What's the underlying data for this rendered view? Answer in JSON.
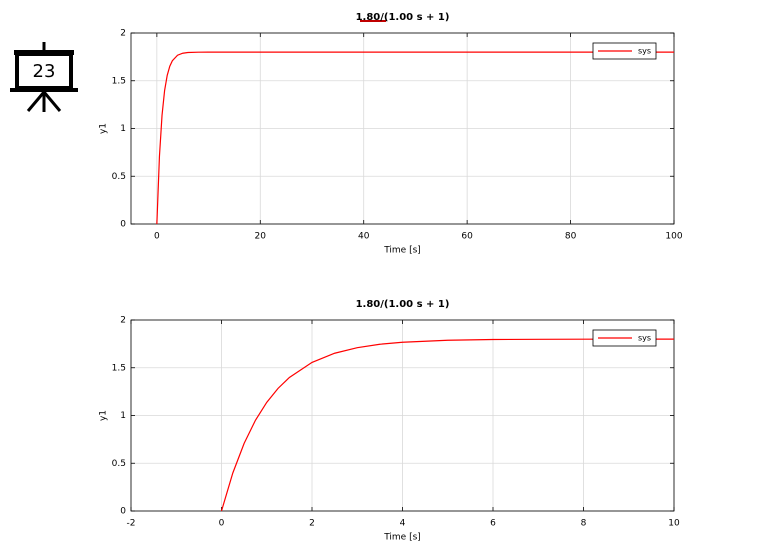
{
  "slide_number": "23",
  "chart_data": [
    {
      "type": "line",
      "title": "1.80/(1.00 s + 1)",
      "xlabel": "Time [s]",
      "ylabel": "y1",
      "x": [
        0,
        0.5,
        1,
        1.5,
        2,
        2.5,
        3,
        4,
        5,
        6,
        8,
        10,
        20,
        40,
        60,
        80,
        100
      ],
      "series": [
        {
          "name": "sys",
          "color": "#ff0000",
          "values": [
            0,
            0.708,
            1.138,
            1.398,
            1.556,
            1.652,
            1.71,
            1.767,
            1.788,
            1.796,
            1.799,
            1.8,
            1.8,
            1.8,
            1.8,
            1.8,
            1.8
          ]
        }
      ],
      "xlim": [
        -5,
        100
      ],
      "xticks": [
        0,
        20,
        40,
        60,
        80,
        100
      ],
      "ylim": [
        0,
        2
      ],
      "yticks": [
        0,
        0.5,
        1,
        1.5,
        2
      ],
      "grid": true,
      "legend": "northeast"
    },
    {
      "type": "line",
      "title": "1.80/(1.00 s + 1)",
      "xlabel": "Time [s]",
      "ylabel": "y1",
      "x": [
        0,
        0.25,
        0.5,
        0.75,
        1,
        1.25,
        1.5,
        2,
        2.5,
        3,
        3.5,
        4,
        5,
        6,
        7,
        8,
        10
      ],
      "series": [
        {
          "name": "sys",
          "color": "#ff0000",
          "values": [
            0,
            0.398,
            0.708,
            0.95,
            1.138,
            1.284,
            1.398,
            1.556,
            1.652,
            1.71,
            1.746,
            1.767,
            1.788,
            1.796,
            1.798,
            1.799,
            1.8
          ]
        }
      ],
      "xlim": [
        -2,
        10
      ],
      "xticks": [
        -2,
        0,
        2,
        4,
        6,
        8,
        10
      ],
      "ylim": [
        0,
        2
      ],
      "yticks": [
        0,
        0.5,
        1,
        1.5,
        2
      ],
      "grid": true,
      "legend": "northeast"
    }
  ]
}
